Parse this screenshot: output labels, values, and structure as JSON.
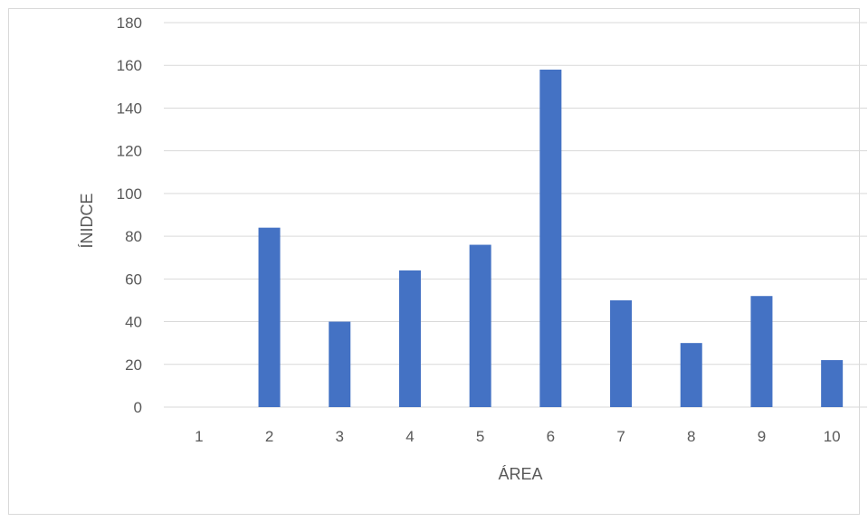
{
  "chart_data": {
    "type": "bar",
    "categories": [
      "1",
      "2",
      "3",
      "4",
      "5",
      "6",
      "7",
      "8",
      "9",
      "10"
    ],
    "values": [
      0,
      84,
      40,
      64,
      76,
      158,
      50,
      30,
      52,
      22
    ],
    "title": "",
    "xlabel": "ÁREA",
    "ylabel": "ÍNIDCE",
    "ylim": [
      0,
      180
    ],
    "yticks": [
      "0",
      "20",
      "40",
      "60",
      "80",
      "100",
      "120",
      "140",
      "160",
      "180"
    ],
    "grid": true,
    "legend": "none",
    "colors": {
      "bar": "#4472c4",
      "grid": "#d9d9d9",
      "text": "#595959"
    }
  }
}
